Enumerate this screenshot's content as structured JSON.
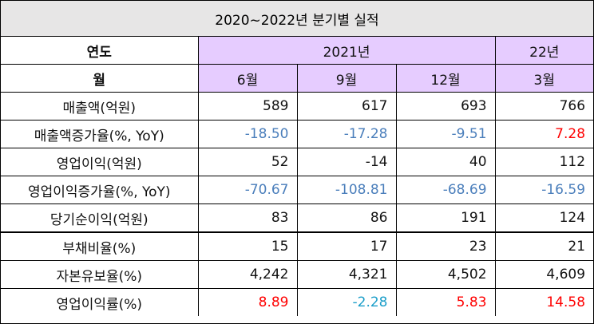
{
  "title": "2020~2022년 분기별 실적",
  "header": {
    "year_label": "연도",
    "year_2021": "2021년",
    "year_22": "22년",
    "month_label": "월",
    "months": [
      "6월",
      "9월",
      "12월",
      "3월"
    ]
  },
  "rows": [
    {
      "label": "매출액(억원)",
      "values": [
        "589",
        "617",
        "693",
        "766"
      ],
      "colors": [
        "#111111",
        "#111111",
        "#111111",
        "#111111"
      ]
    },
    {
      "label": "매출액증가율(%, YoY)",
      "values": [
        "-18.50",
        "-17.28",
        "-9.51",
        "7.28"
      ],
      "colors": [
        "#4a7ebb",
        "#4a7ebb",
        "#4a7ebb",
        "#ff0000"
      ]
    },
    {
      "label": "영업이익(억원)",
      "values": [
        "52",
        "-14",
        "40",
        "112"
      ],
      "colors": [
        "#111111",
        "#111111",
        "#111111",
        "#111111"
      ]
    },
    {
      "label": "영업이익증가율(%, YoY)",
      "values": [
        "-70.67",
        "-108.81",
        "-68.69",
        "-16.59"
      ],
      "colors": [
        "#4a7ebb",
        "#4a7ebb",
        "#4a7ebb",
        "#4a7ebb"
      ]
    },
    {
      "label": "당기순이익(억원)",
      "values": [
        "83",
        "86",
        "191",
        "124"
      ],
      "colors": [
        "#111111",
        "#111111",
        "#111111",
        "#111111"
      ]
    },
    {
      "label": "부채비율(%)",
      "values": [
        "15",
        "17",
        "23",
        "21"
      ],
      "colors": [
        "#111111",
        "#111111",
        "#111111",
        "#111111"
      ]
    },
    {
      "label": "자본유보율(%)",
      "values": [
        "4,242",
        "4,321",
        "4,502",
        "4,609"
      ],
      "colors": [
        "#111111",
        "#111111",
        "#111111",
        "#111111"
      ]
    },
    {
      "label": "영업이익률(%)",
      "values": [
        "8.89",
        "-2.28",
        "5.83",
        "14.58"
      ],
      "colors": [
        "#ff0000",
        "#1b9ec9",
        "#ff0000",
        "#ff0000"
      ]
    }
  ],
  "colors": {
    "title_bg": "#e7e6e6",
    "header_purple": "#e6ccff",
    "border": "#000000"
  }
}
